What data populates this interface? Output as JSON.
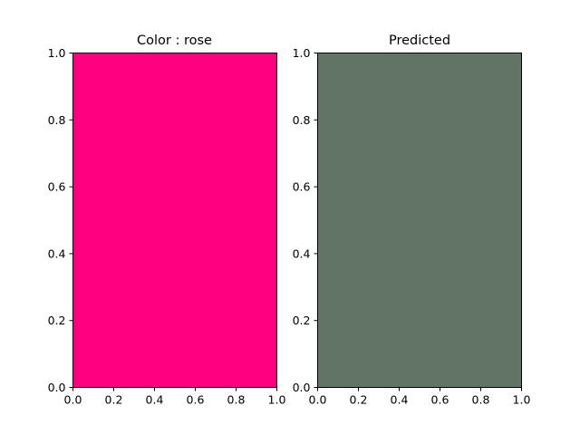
{
  "chart_data": [
    {
      "type": "heatmap",
      "title": "Color : rose",
      "fill_color": "#ff0080",
      "xlim": [
        0.0,
        1.0
      ],
      "ylim": [
        0.0,
        1.0
      ],
      "xticks": [
        "0.0",
        "0.2",
        "0.4",
        "0.6",
        "0.8",
        "1.0"
      ],
      "yticks": [
        "0.0",
        "0.2",
        "0.4",
        "0.6",
        "0.8",
        "1.0"
      ],
      "grid": false
    },
    {
      "type": "heatmap",
      "title": "Predicted",
      "fill_color": "#627466",
      "xlim": [
        0.0,
        1.0
      ],
      "ylim": [
        0.0,
        1.0
      ],
      "xticks": [
        "0.0",
        "0.2",
        "0.4",
        "0.6",
        "0.8",
        "1.0"
      ],
      "yticks": [
        "0.0",
        "0.2",
        "0.4",
        "0.6",
        "0.8",
        "1.0"
      ],
      "grid": false
    }
  ]
}
